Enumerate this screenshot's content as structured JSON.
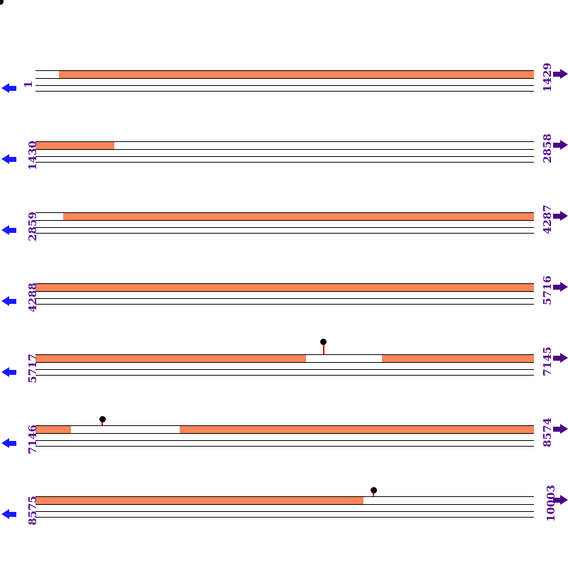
{
  "colors": {
    "bar_fill": "#fc855a",
    "track_line": "#000000",
    "label_text": "#550f94",
    "left_arrow": "#1a1aff",
    "right_arrow": "#4b0082",
    "marker_stem": "#e80000",
    "marker_dot": "#000000"
  },
  "rows": [
    {
      "left_label": "1",
      "right_label": "1429",
      "segments": [
        {
          "type": "gap",
          "a": 0.0,
          "b": 0.047
        },
        {
          "type": "bar",
          "a": 0.047,
          "b": 1.0
        }
      ],
      "lollipops": []
    },
    {
      "left_label": "1430",
      "right_label": "2858",
      "segments": [
        {
          "type": "bar",
          "a": 0.0,
          "b": 0.158
        },
        {
          "type": "gap",
          "a": 0.158,
          "b": 1.0
        }
      ],
      "lollipops": []
    },
    {
      "left_label": "2859",
      "right_label": "4287",
      "segments": [
        {
          "type": "gap",
          "a": 0.0,
          "b": 0.056
        },
        {
          "type": "bar",
          "a": 0.056,
          "b": 1.0
        }
      ],
      "lollipops": []
    },
    {
      "left_label": "4288",
      "right_label": "5716",
      "segments": [
        {
          "type": "bar",
          "a": 0.0,
          "b": 1.0
        }
      ],
      "lollipops": []
    },
    {
      "left_label": "5717",
      "right_label": "7145",
      "segments": [
        {
          "type": "bar",
          "a": 0.0,
          "b": 0.543
        },
        {
          "type": "gap",
          "a": 0.543,
          "b": 0.695
        },
        {
          "type": "bar",
          "a": 0.695,
          "b": 1.0
        }
      ],
      "lollipops": [
        {
          "x": 0.578,
          "stem_h": 13
        }
      ]
    },
    {
      "left_label": "7146",
      "right_label": "8574",
      "segments": [
        {
          "type": "bar",
          "a": 0.0,
          "b": 0.071
        },
        {
          "type": "gap",
          "a": 0.071,
          "b": 0.289
        },
        {
          "type": "bar",
          "a": 0.289,
          "b": 1.0
        }
      ],
      "lollipops": [
        {
          "x": 0.134,
          "stem_h": 4
        }
      ]
    },
    {
      "left_label": "8575",
      "right_label": "10003",
      "segments": [
        {
          "type": "bar",
          "a": 0.0,
          "b": 0.658
        },
        {
          "type": "gap",
          "a": 0.658,
          "b": 1.0
        }
      ],
      "lollipops": [
        {
          "x": 0.678,
          "stem_h": 4
        }
      ]
    }
  ]
}
